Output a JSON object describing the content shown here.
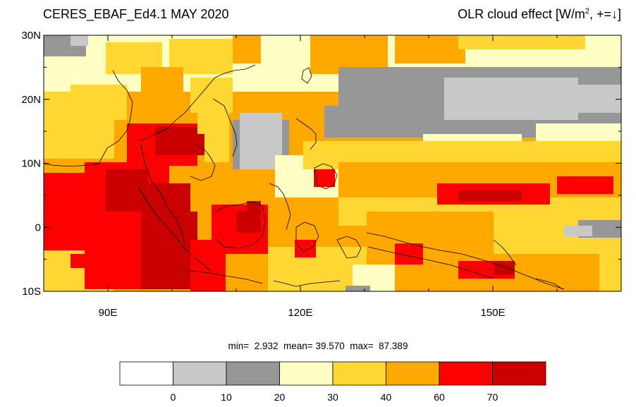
{
  "title_left": "CERES_EBAF_Ed4.1 MAY 2020",
  "title_right_main": "OLR cloud effect [W/m",
  "title_right_sup": "2",
  "title_right_tail": ", +=↓]",
  "lat_labels": [
    "30N",
    "20N",
    "10N",
    "0",
    "10S"
  ],
  "lon_labels": [
    "90E",
    "120E",
    "150E"
  ],
  "stats": {
    "min_label": "min=",
    "min": "2.932",
    "mean_label": "mean=",
    "mean": "39.570",
    "max_label": "max=",
    "max": "87.389"
  },
  "colorbar": {
    "colors": [
      "#ffffff",
      "#c8c8c8",
      "#969696",
      "#ffffc4",
      "#ffd733",
      "#ffa800",
      "#ff0000",
      "#c80000"
    ],
    "labels": [
      "0",
      "10",
      "20",
      "30",
      "40",
      "60",
      "70"
    ]
  },
  "map_extent": {
    "lon_min": 80,
    "lon_max": 170,
    "lat_min": -10,
    "lat_max": 30
  }
}
